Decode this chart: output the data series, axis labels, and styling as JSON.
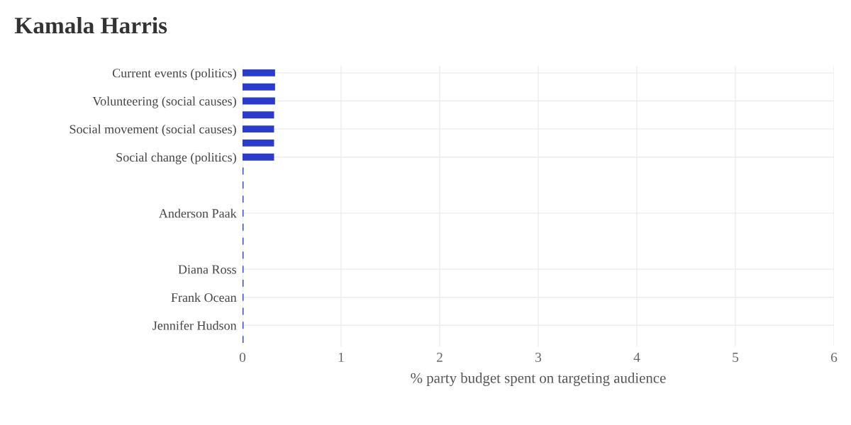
{
  "chart_data": {
    "type": "bar",
    "orientation": "horizontal",
    "title": "Kamala Harris",
    "xlabel": "% party budget spent on targeting audience",
    "categories": [
      "Current events (politics)",
      null,
      "Volunteering (social causes)",
      null,
      "Social movement (social causes)",
      null,
      "Social change (politics)",
      null,
      null,
      null,
      "Anderson Paak",
      null,
      null,
      null,
      "Diana Ross",
      null,
      "Frank Ocean",
      null,
      "Jennifer Hudson",
      null
    ],
    "values": [
      0.33,
      0.33,
      0.33,
      0.32,
      0.32,
      0.32,
      0.32,
      0.01,
      0.01,
      0.01,
      0.01,
      0.01,
      0.01,
      0.01,
      0.01,
      0.01,
      0.01,
      0.01,
      0.01,
      0.01
    ],
    "color": "#2b3bcc",
    "xlim": [
      0,
      6
    ],
    "xticks": [
      0,
      1,
      2,
      3,
      4,
      5,
      6
    ],
    "grid": true
  }
}
